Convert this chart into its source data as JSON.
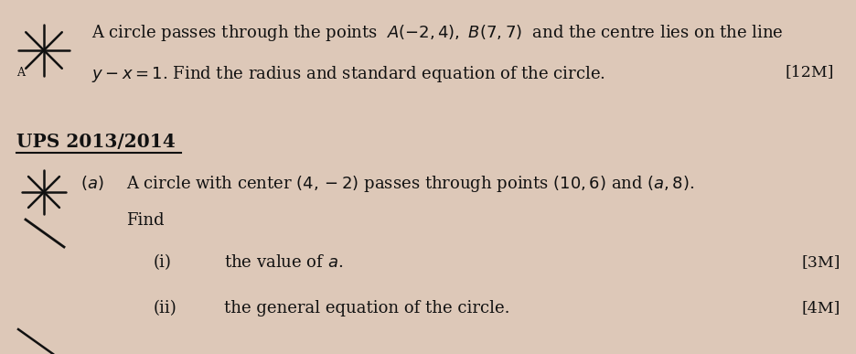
{
  "bg_color": "#ddc8b8",
  "text_color": "#111111",
  "section_title": "UPS 2013/2014",
  "line2_mark": "[12M]",
  "sub_i_mark": "[3M]",
  "sub_ii_mark": "[4M]",
  "font_size_main": 13.0,
  "font_size_section": 13.5,
  "font_size_mark": 12.5
}
